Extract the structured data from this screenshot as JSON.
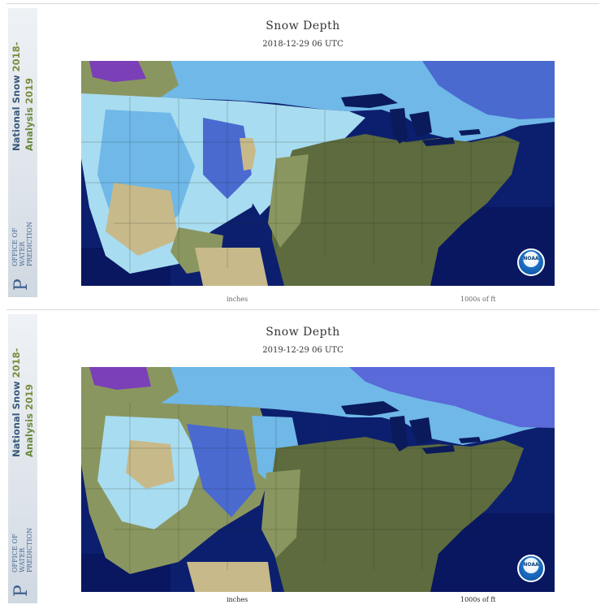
{
  "sidebar": {
    "program_title": "National Snow",
    "program_subtitle": "Analysis",
    "year_start": "2018-",
    "year_end": "2019",
    "office_line1": "OFFICE OF",
    "office_line2": "WATER",
    "office_line3": "PREDICTION",
    "office_logo_letter": "P"
  },
  "panels": [
    {
      "title": "Snow Depth",
      "timestamp": "2018-12-29 06 UTC",
      "legend_left_units": "inches",
      "legend_right_units": "1000s of ft",
      "logo_text": "NOAA"
    },
    {
      "title": "Snow Depth",
      "timestamp": "2019-12-29 06 UTC",
      "legend_left_units": "inches",
      "legend_right_units": "1000s of ft",
      "logo_text": "NOAA"
    }
  ],
  "colors": {
    "ocean": "#0c1f6e",
    "bare_ground": "#5d6b3e",
    "bare_light": "#8a9660",
    "desert": "#c7b98a",
    "snow_light": "#a8dcf0",
    "snow_medium": "#6fb8e8",
    "snow_deep": "#4a6ad0",
    "snow_very_deep": "#7b3fb8",
    "canada_ice": "#5a6ad8"
  }
}
